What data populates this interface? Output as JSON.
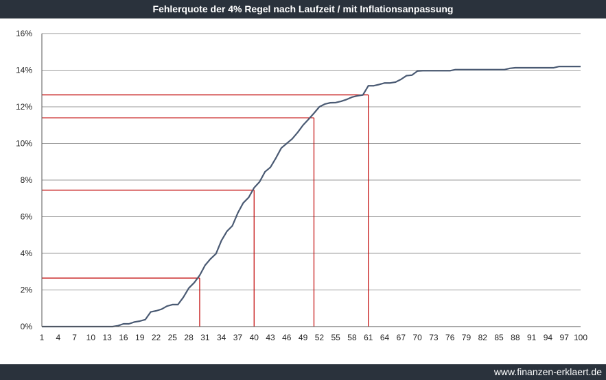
{
  "header": {
    "title": "Fehlerquote der 4% Regel nach Laufzeit / mit Inflationsanpassung"
  },
  "footer": {
    "source": "www.finanzen-erklaert.de"
  },
  "colors": {
    "line": "#4a5a73",
    "marker": "#c00000",
    "grid": "#9a9a9a",
    "bar": "#2a323c"
  },
  "chart_data": {
    "type": "line",
    "title": "Fehlerquote der 4% Regel nach Laufzeit / mit Inflationsanpassung",
    "xlabel": "",
    "ylabel": "",
    "xlim": [
      1,
      100
    ],
    "ylim": [
      0,
      16
    ],
    "grid": "horizontal",
    "y_ticks": [
      "0%",
      "2%",
      "4%",
      "6%",
      "8%",
      "10%",
      "12%",
      "14%",
      "16%"
    ],
    "x_ticks": [
      "1",
      "4",
      "7",
      "10",
      "13",
      "16",
      "19",
      "22",
      "25",
      "28",
      "31",
      "34",
      "37",
      "40",
      "43",
      "46",
      "49",
      "52",
      "55",
      "58",
      "61",
      "64",
      "67",
      "70",
      "73",
      "76",
      "79",
      "82",
      "85",
      "88",
      "91",
      "94",
      "97",
      "100"
    ],
    "series": [
      {
        "x": [
          1,
          10,
          14,
          15,
          16,
          17,
          18,
          19,
          20,
          21,
          22,
          23,
          24,
          25,
          26,
          27,
          28,
          29,
          30,
          31,
          32,
          33,
          34,
          35,
          36,
          37,
          38,
          39,
          40,
          41,
          42,
          43,
          44,
          45,
          46,
          47,
          48,
          49,
          50,
          51,
          52,
          53,
          54,
          55,
          56,
          57,
          58,
          59,
          60,
          61,
          62,
          63,
          64,
          65,
          66,
          67,
          68,
          69,
          70,
          71,
          72,
          73,
          74,
          75,
          76,
          77,
          78,
          79,
          80,
          85,
          86,
          87,
          88,
          89,
          90,
          95,
          96,
          97,
          100
        ],
        "y": [
          0,
          0,
          0,
          0.05,
          0.15,
          0.15,
          0.25,
          0.3,
          0.38,
          0.8,
          0.86,
          0.95,
          1.12,
          1.2,
          1.2,
          1.6,
          2.1,
          2.4,
          2.8,
          3.35,
          3.7,
          3.98,
          4.7,
          5.2,
          5.5,
          6.2,
          6.75,
          7.05,
          7.58,
          7.9,
          8.45,
          8.7,
          9.2,
          9.75,
          10.0,
          10.25,
          10.6,
          11.0,
          11.32,
          11.65,
          12.0,
          12.15,
          12.22,
          12.23,
          12.3,
          12.4,
          12.53,
          12.6,
          12.65,
          13.15,
          13.15,
          13.22,
          13.3,
          13.3,
          13.35,
          13.5,
          13.7,
          13.73,
          13.95,
          13.97,
          13.97,
          13.97,
          13.97,
          13.97,
          13.97,
          14.03,
          14.03,
          14.03,
          14.03,
          14.03,
          14.03,
          14.1,
          14.13,
          14.13,
          14.13,
          14.13,
          14.2,
          14.2,
          14.2
        ]
      }
    ],
    "reference_lines": [
      {
        "x": 30,
        "y": 2.65
      },
      {
        "x": 40,
        "y": 7.45
      },
      {
        "x": 51,
        "y": 11.4
      },
      {
        "x": 61,
        "y": 12.65
      }
    ]
  }
}
